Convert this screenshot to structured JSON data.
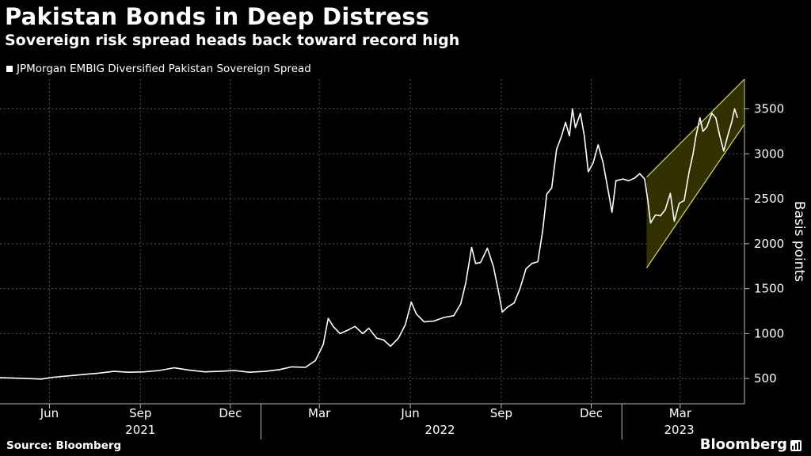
{
  "header": {
    "title": "Pakistan Bonds in Deep Distress",
    "subtitle": "Sovereign risk spread heads back toward record high"
  },
  "footer": {
    "source": "Source: Bloomberg",
    "brand": "Bloomberg"
  },
  "colors": {
    "background": "#000000",
    "line": "#ffffff",
    "channel_fill": "#3a3a00",
    "channel_edge": "#d8d860",
    "grid": "#555555"
  },
  "chart_data": {
    "type": "line",
    "ylabel": "Basis points",
    "y_axis_side": "right",
    "ylim": [
      220,
      3830
    ],
    "yticks": [
      500,
      1000,
      1500,
      2000,
      2500,
      3000,
      3500
    ],
    "ytick_labels": [
      "500",
      "1000",
      "1500",
      "2000",
      "2500",
      "3000",
      "3500"
    ],
    "x_start": "2021-04-12",
    "x_end": "2023-05-05",
    "grid": true,
    "legend_position": "top-left",
    "month_ticks": [
      {
        "date": "2021-06-01",
        "label": "Jun"
      },
      {
        "date": "2021-09-01",
        "label": "Sep"
      },
      {
        "date": "2021-12-01",
        "label": "Dec"
      },
      {
        "date": "2022-03-01",
        "label": "Mar"
      },
      {
        "date": "2022-06-01",
        "label": "Jun"
      },
      {
        "date": "2022-09-01",
        "label": "Sep"
      },
      {
        "date": "2022-12-01",
        "label": "Dec"
      },
      {
        "date": "2023-03-01",
        "label": "Mar"
      }
    ],
    "year_labels": [
      {
        "date": "2021-09-01",
        "label": "2021"
      },
      {
        "date": "2022-07-01",
        "label": "2022"
      },
      {
        "date": "2023-02-28",
        "label": "2023"
      }
    ],
    "year_boundaries": [
      "2022-01-01",
      "2023-01-01"
    ],
    "series": [
      {
        "name": "JPMorgan EMBIG Diversified Pakistan Sovereign Spread",
        "points": [
          [
            "2021-04-12",
            510
          ],
          [
            "2021-04-26",
            505
          ],
          [
            "2021-05-10",
            500
          ],
          [
            "2021-05-24",
            495
          ],
          [
            "2021-06-05",
            515
          ],
          [
            "2021-06-20",
            530
          ],
          [
            "2021-07-05",
            545
          ],
          [
            "2021-07-20",
            560
          ],
          [
            "2021-08-05",
            580
          ],
          [
            "2021-08-20",
            570
          ],
          [
            "2021-09-05",
            575
          ],
          [
            "2021-09-20",
            590
          ],
          [
            "2021-10-05",
            620
          ],
          [
            "2021-10-20",
            595
          ],
          [
            "2021-11-05",
            575
          ],
          [
            "2021-11-20",
            580
          ],
          [
            "2021-12-05",
            590
          ],
          [
            "2021-12-20",
            570
          ],
          [
            "2022-01-05",
            580
          ],
          [
            "2022-01-20",
            600
          ],
          [
            "2022-02-01",
            630
          ],
          [
            "2022-02-15",
            625
          ],
          [
            "2022-02-25",
            700
          ],
          [
            "2022-03-05",
            880
          ],
          [
            "2022-03-10",
            1170
          ],
          [
            "2022-03-15",
            1080
          ],
          [
            "2022-03-22",
            1000
          ],
          [
            "2022-03-30",
            1040
          ],
          [
            "2022-04-06",
            1080
          ],
          [
            "2022-04-14",
            1000
          ],
          [
            "2022-04-20",
            1060
          ],
          [
            "2022-04-28",
            950
          ],
          [
            "2022-05-05",
            930
          ],
          [
            "2022-05-12",
            860
          ],
          [
            "2022-05-20",
            950
          ],
          [
            "2022-05-27",
            1100
          ],
          [
            "2022-06-02",
            1350
          ],
          [
            "2022-06-07",
            1220
          ],
          [
            "2022-06-15",
            1130
          ],
          [
            "2022-06-25",
            1140
          ],
          [
            "2022-07-05",
            1180
          ],
          [
            "2022-07-15",
            1200
          ],
          [
            "2022-07-22",
            1330
          ],
          [
            "2022-07-27",
            1560
          ],
          [
            "2022-08-02",
            1960
          ],
          [
            "2022-08-06",
            1780
          ],
          [
            "2022-08-11",
            1790
          ],
          [
            "2022-08-18",
            1950
          ],
          [
            "2022-08-24",
            1750
          ],
          [
            "2022-08-29",
            1480
          ],
          [
            "2022-09-02",
            1240
          ],
          [
            "2022-09-08",
            1300
          ],
          [
            "2022-09-14",
            1340
          ],
          [
            "2022-09-20",
            1500
          ],
          [
            "2022-09-26",
            1720
          ],
          [
            "2022-10-02",
            1780
          ],
          [
            "2022-10-08",
            1800
          ],
          [
            "2022-10-13",
            2150
          ],
          [
            "2022-10-17",
            2550
          ],
          [
            "2022-10-22",
            2620
          ],
          [
            "2022-10-27",
            3050
          ],
          [
            "2022-11-01",
            3200
          ],
          [
            "2022-11-05",
            3350
          ],
          [
            "2022-11-09",
            3200
          ],
          [
            "2022-11-12",
            3500
          ],
          [
            "2022-11-15",
            3290
          ],
          [
            "2022-11-20",
            3450
          ],
          [
            "2022-11-24",
            3200
          ],
          [
            "2022-11-28",
            2800
          ],
          [
            "2022-12-03",
            2900
          ],
          [
            "2022-12-08",
            3100
          ],
          [
            "2022-12-13",
            2900
          ],
          [
            "2022-12-18",
            2600
          ],
          [
            "2022-12-22",
            2350
          ],
          [
            "2022-12-26",
            2700
          ],
          [
            "2023-01-02",
            2720
          ],
          [
            "2023-01-08",
            2700
          ],
          [
            "2023-01-14",
            2730
          ],
          [
            "2023-01-19",
            2780
          ],
          [
            "2023-01-24",
            2720
          ],
          [
            "2023-01-27",
            2500
          ],
          [
            "2023-01-30",
            2230
          ],
          [
            "2023-02-04",
            2320
          ],
          [
            "2023-02-09",
            2310
          ],
          [
            "2023-02-14",
            2380
          ],
          [
            "2023-02-19",
            2560
          ],
          [
            "2023-02-23",
            2250
          ],
          [
            "2023-02-28",
            2450
          ],
          [
            "2023-03-05",
            2480
          ],
          [
            "2023-03-10",
            2800
          ],
          [
            "2023-03-14",
            3000
          ],
          [
            "2023-03-17",
            3200
          ],
          [
            "2023-03-21",
            3400
          ],
          [
            "2023-03-24",
            3250
          ],
          [
            "2023-03-28",
            3300
          ],
          [
            "2023-04-02",
            3450
          ],
          [
            "2023-04-06",
            3400
          ],
          [
            "2023-04-10",
            3200
          ],
          [
            "2023-04-14",
            3030
          ],
          [
            "2023-04-18",
            3200
          ],
          [
            "2023-04-22",
            3350
          ],
          [
            "2023-04-25",
            3500
          ],
          [
            "2023-04-28",
            3400
          ]
        ]
      }
    ],
    "channel": {
      "upper": [
        [
          "2023-01-26",
          2740
        ],
        [
          "2023-05-05",
          3830
        ]
      ],
      "lower": [
        [
          "2023-01-26",
          1730
        ],
        [
          "2023-05-05",
          3330
        ]
      ]
    }
  }
}
